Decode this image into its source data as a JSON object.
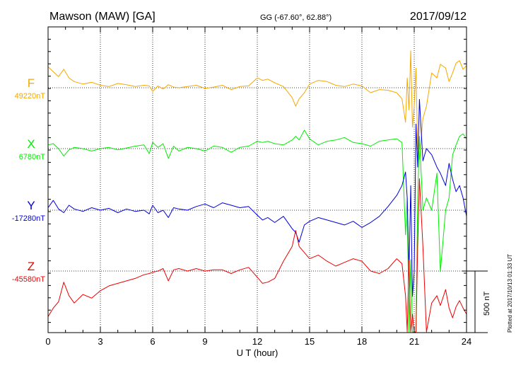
{
  "header": {
    "station": "Mawson (MAW)  [GA]",
    "coords": "GG (-67.60°,  62.88°)",
    "date": "2017/09/12"
  },
  "footer": {
    "xlabel": "U T (hour)",
    "plotted": "Plotted at 2017/10/13 01:33 UT",
    "scale_label": "500 nT"
  },
  "colors": {
    "F": "#f5a800",
    "X": "#00ee00",
    "Y": "#0000dd",
    "Z": "#ee0000",
    "axis": "#000000",
    "grid": "#000000"
  },
  "chart_data": {
    "type": "line",
    "title": "Mawson (MAW)  [GA]",
    "xlabel": "U T (hour)",
    "ylabel": "",
    "xlim": [
      0,
      24
    ],
    "xticks": [
      0,
      3,
      6,
      9,
      12,
      15,
      18,
      21,
      24
    ],
    "tick_labels": [
      "0",
      "3",
      "6",
      "9",
      "12",
      "15",
      "18",
      "21",
      "24"
    ],
    "scale_nT": 500,
    "grid": true,
    "series": [
      {
        "name": "F",
        "baseline_label": "49220nT",
        "baseline_nT": 49220,
        "x": [
          0,
          0.3,
          0.6,
          0.9,
          1.2,
          1.5,
          2,
          2.5,
          3,
          3.5,
          4,
          4.5,
          5,
          5.5,
          5.8,
          6,
          6.3,
          6.6,
          6.9,
          7.2,
          7.5,
          8,
          8.5,
          9,
          9.5,
          10,
          10.5,
          11,
          11.5,
          12,
          12.3,
          12.6,
          13,
          13.5,
          14,
          14.2,
          14.4,
          14.7,
          15,
          15.5,
          16,
          16.5,
          17,
          17.5,
          18,
          18.5,
          19,
          19.5,
          20,
          20.3,
          20.5,
          20.6,
          20.7,
          20.8,
          20.9,
          21,
          21.1,
          21.2,
          21.3,
          21.5,
          21.7,
          22,
          22.3,
          22.5,
          22.8,
          23,
          23.2,
          23.4,
          23.6,
          23.8,
          24
        ],
        "values": [
          170,
          130,
          90,
          150,
          80,
          50,
          30,
          45,
          20,
          10,
          35,
          25,
          10,
          20,
          15,
          -30,
          15,
          -10,
          25,
          5,
          0,
          10,
          20,
          -5,
          5,
          20,
          -15,
          10,
          15,
          80,
          60,
          70,
          40,
          10,
          -80,
          -150,
          -90,
          -40,
          30,
          60,
          50,
          20,
          10,
          30,
          15,
          -40,
          -15,
          -20,
          -40,
          -90,
          -280,
          80,
          -180,
          300,
          -320,
          -150,
          160,
          -480,
          -580,
          -250,
          -150,
          120,
          80,
          190,
          160,
          50,
          120,
          200,
          220,
          150,
          180
        ]
      },
      {
        "name": "X",
        "baseline_label": "6780nT",
        "baseline_nT": 6780,
        "x": [
          0,
          0.3,
          0.6,
          0.9,
          1.2,
          1.5,
          2,
          2.5,
          3,
          3.5,
          4,
          4.5,
          5,
          5.5,
          5.8,
          6,
          6.3,
          6.6,
          6.9,
          7.2,
          7.5,
          8,
          8.5,
          9,
          9.5,
          10,
          10.5,
          11,
          11.5,
          12,
          12.3,
          12.6,
          13,
          13.5,
          14,
          14.2,
          14.4,
          14.7,
          15,
          15.5,
          16,
          16.5,
          17,
          17.5,
          18,
          18.5,
          19,
          19.5,
          20,
          20.3,
          20.5,
          20.6,
          20.7,
          20.8,
          20.9,
          21,
          21.1,
          21.2,
          21.3,
          21.5,
          21.7,
          22,
          22.3,
          22.5,
          22.8,
          23,
          23.2,
          23.4,
          23.6,
          23.8,
          24
        ],
        "values": [
          30,
          40,
          0,
          -60,
          -10,
          10,
          0,
          -20,
          0,
          10,
          -10,
          5,
          20,
          30,
          -40,
          50,
          10,
          40,
          -80,
          20,
          -20,
          10,
          0,
          -20,
          20,
          10,
          -30,
          10,
          20,
          60,
          50,
          60,
          40,
          30,
          70,
          100,
          70,
          150,
          80,
          30,
          60,
          70,
          90,
          50,
          40,
          20,
          60,
          70,
          80,
          50,
          -700,
          -400,
          -1700,
          -900,
          -2000,
          -3050,
          -1800,
          -400,
          100,
          -500,
          -400,
          -500,
          -200,
          -1000,
          -500,
          -400,
          -50,
          30,
          100,
          120,
          80
        ]
      },
      {
        "name": "Y",
        "baseline_label": "-17280nT",
        "baseline_nT": -17280,
        "x": [
          0,
          0.3,
          0.6,
          0.9,
          1.2,
          1.5,
          2,
          2.5,
          3,
          3.5,
          4,
          4.5,
          5,
          5.5,
          5.8,
          6,
          6.3,
          6.6,
          6.9,
          7.2,
          7.5,
          8,
          8.5,
          9,
          9.5,
          10,
          10.5,
          11,
          11.5,
          12,
          12.3,
          12.6,
          13,
          13.5,
          14,
          14.2,
          14.4,
          14.7,
          15,
          15.5,
          16,
          16.5,
          17,
          17.5,
          18,
          18.5,
          19,
          19.5,
          20,
          20.3,
          20.5,
          20.6,
          20.7,
          20.8,
          20.9,
          21,
          21.1,
          21.2,
          21.3,
          21.5,
          21.7,
          22,
          22.3,
          22.5,
          22.8,
          23,
          23.2,
          23.4,
          23.6,
          23.8,
          24
        ],
        "values": [
          20,
          80,
          10,
          -20,
          40,
          10,
          -10,
          20,
          0,
          15,
          -20,
          10,
          -10,
          0,
          -30,
          40,
          -20,
          0,
          -60,
          20,
          10,
          0,
          30,
          50,
          20,
          60,
          40,
          20,
          30,
          -40,
          -80,
          -60,
          -100,
          -50,
          -150,
          -180,
          -260,
          -120,
          -90,
          -60,
          -80,
          -100,
          -120,
          -90,
          -140,
          -100,
          -50,
          30,
          120,
          200,
          310,
          100,
          -500,
          200,
          -700,
          -500,
          700,
          350,
          900,
          400,
          500,
          450,
          350,
          300,
          200,
          380,
          250,
          150,
          200,
          100,
          -50
        ]
      },
      {
        "name": "Z",
        "baseline_label": "-45580nT",
        "baseline_nT": -45580,
        "x": [
          0,
          0.3,
          0.6,
          0.9,
          1.2,
          1.5,
          2,
          2.5,
          3,
          3.5,
          4,
          4.5,
          5,
          5.5,
          5.8,
          6,
          6.3,
          6.6,
          6.9,
          7.2,
          7.5,
          8,
          8.5,
          9,
          9.5,
          10,
          10.5,
          11,
          11.5,
          12,
          12.3,
          12.6,
          13,
          13.5,
          14,
          14.2,
          14.4,
          14.7,
          15,
          15.5,
          16,
          16.5,
          17,
          17.5,
          18,
          18.5,
          19,
          19.5,
          20,
          20.3,
          20.5,
          20.6,
          20.7,
          20.8,
          20.9,
          21,
          21.1,
          21.2,
          21.3,
          21.5,
          21.7,
          22,
          22.3,
          22.5,
          22.8,
          23,
          23.2,
          23.4,
          23.6,
          23.8,
          24
        ],
        "values": [
          -370,
          -300,
          -250,
          -90,
          -200,
          -260,
          -190,
          -220,
          -160,
          -120,
          -100,
          -80,
          -60,
          -30,
          -20,
          -10,
          0,
          20,
          -80,
          10,
          20,
          0,
          20,
          0,
          10,
          10,
          -20,
          10,
          30,
          -50,
          -100,
          -90,
          -60,
          80,
          200,
          330,
          200,
          150,
          100,
          130,
          80,
          40,
          70,
          100,
          80,
          0,
          -20,
          20,
          100,
          60,
          -200,
          -500,
          90,
          -1250,
          -350,
          -1000,
          -2000,
          200,
          750,
          200,
          -500,
          -260,
          -200,
          -280,
          -150,
          -300,
          -380,
          -290,
          -240,
          -300,
          -350
        ]
      }
    ]
  }
}
